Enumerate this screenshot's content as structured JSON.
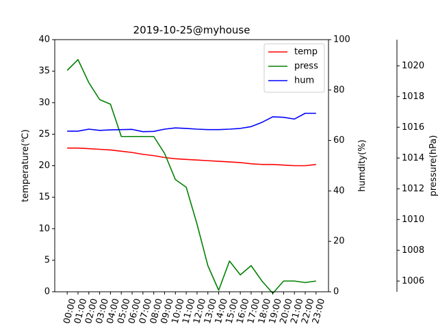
{
  "chart_data": {
    "type": "line",
    "title": "2019-10-25@myhouse",
    "xlabel": "",
    "categories": [
      "00:00",
      "01:00",
      "02:00",
      "03:00",
      "04:00",
      "05:00",
      "06:00",
      "07:00",
      "08:00",
      "09:00",
      "10:00",
      "11:00",
      "12:00",
      "13:00",
      "14:00",
      "15:00",
      "16:00",
      "17:00",
      "18:00",
      "19:00",
      "20:00",
      "21:00",
      "22:00",
      "23:00"
    ],
    "x_tick_rotation_deg": 75,
    "grid": false,
    "legend_position": "top-right",
    "axes": [
      {
        "id": "temp-axis",
        "label": "temperature(℃)",
        "side": "left",
        "ylim": [
          0,
          40
        ],
        "ticks": [
          0,
          5,
          10,
          15,
          20,
          25,
          30,
          35,
          40
        ],
        "tick_labels": [
          "0",
          "5",
          "10",
          "15",
          "20",
          "25",
          "30",
          "35",
          "40"
        ]
      },
      {
        "id": "hum-axis",
        "label": "humdity(%)",
        "side": "right",
        "ylim": [
          0,
          100
        ],
        "ticks": [
          0,
          20,
          40,
          60,
          80,
          100
        ],
        "tick_labels": [
          "0",
          "20",
          "40",
          "60",
          "80",
          "100"
        ]
      },
      {
        "id": "press-axis",
        "label": "pressure(hPa)",
        "side": "right-outer",
        "ylim": [
          1005.3,
          1021.7
        ],
        "ticks": [
          1006,
          1008,
          1010,
          1012,
          1014,
          1016,
          1018,
          1020
        ],
        "tick_labels": [
          "1006",
          "1008",
          "1010",
          "1012",
          "1014",
          "1016",
          "1018",
          "1020"
        ]
      }
    ],
    "series": [
      {
        "name": "temp",
        "axis": "temp-axis",
        "color": "#ff0000",
        "x": [
          0,
          1,
          2,
          3,
          4,
          5,
          6,
          7,
          8,
          9,
          10,
          11,
          12,
          13,
          14,
          15,
          16,
          17,
          18,
          19,
          20,
          21,
          22,
          23
        ],
        "values": [
          22.8,
          22.8,
          22.7,
          22.6,
          22.5,
          22.3,
          22.1,
          21.8,
          21.6,
          21.3,
          21.1,
          21.0,
          20.9,
          20.8,
          20.7,
          20.6,
          20.5,
          20.3,
          20.2,
          20.2,
          20.1,
          20.0,
          20.0,
          20.2
        ]
      },
      {
        "name": "press",
        "axis": "press-axis",
        "color": "#008000",
        "x": [
          0,
          1,
          2,
          3,
          4,
          5,
          6,
          7,
          8,
          9,
          10,
          11,
          12,
          13,
          14,
          15,
          16,
          17,
          18,
          19,
          20,
          21,
          22,
          23
        ],
        "values": [
          1019.7,
          1020.4,
          1018.9,
          1017.8,
          1017.5,
          1015.4,
          1015.4,
          1015.4,
          1015.4,
          1014.3,
          1012.6,
          1012.1,
          1009.7,
          1007.0,
          1005.4,
          1007.3,
          1006.4,
          1007.0,
          1006.0,
          1005.2,
          1006.0,
          1006.0,
          1005.9,
          1006.0
        ]
      },
      {
        "name": "hum",
        "axis": "hum-axis",
        "color": "#0000ff",
        "x": [
          0,
          1,
          2,
          3,
          4,
          5,
          6,
          7,
          8,
          9,
          10,
          11,
          12,
          13,
          14,
          15,
          16,
          17,
          18,
          19,
          20,
          21,
          22,
          23
        ],
        "values": [
          63.7,
          63.7,
          64.5,
          64.0,
          64.2,
          64.3,
          64.4,
          63.5,
          63.6,
          64.5,
          65.0,
          64.8,
          64.5,
          64.3,
          64.3,
          64.5,
          64.8,
          65.5,
          67.2,
          69.4,
          69.2,
          68.5,
          70.8,
          70.8
        ]
      }
    ]
  }
}
